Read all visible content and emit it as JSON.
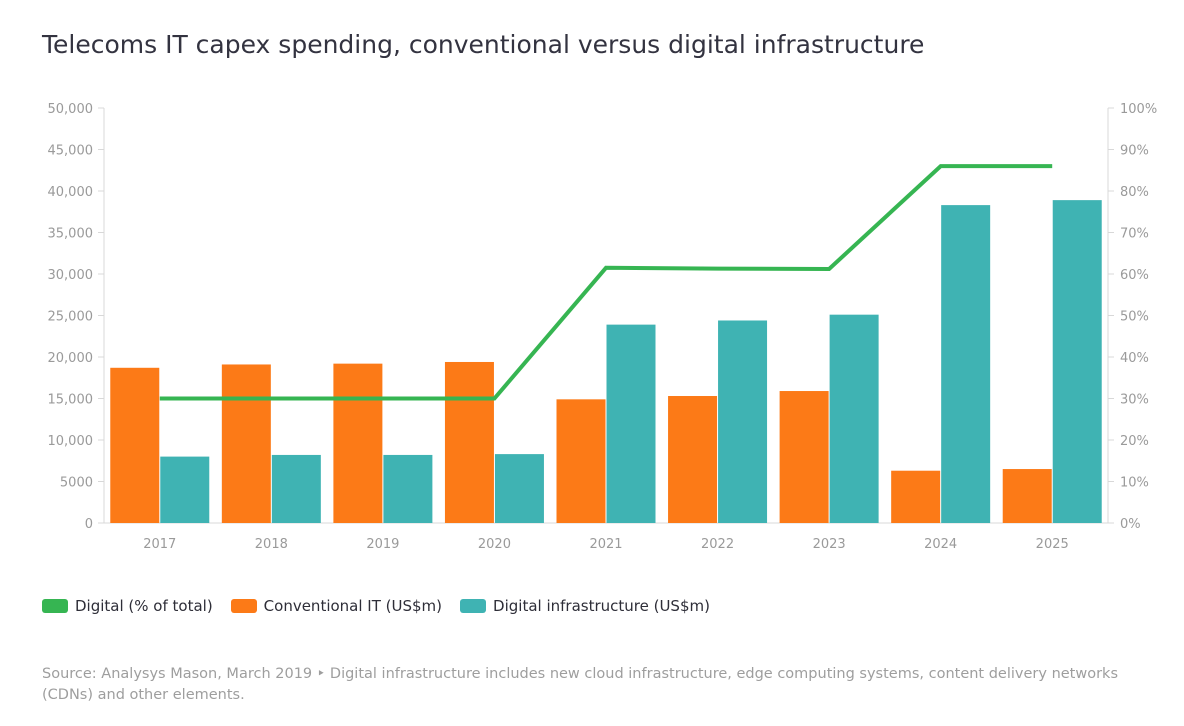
{
  "title": "Telecoms IT capex spending, conventional versus digital infrastructure",
  "colors": {
    "conventional": "#fc7a17",
    "digital_infra": "#3fb3b3",
    "digital_pct": "#36b552",
    "axis": "#d8d8d8",
    "tick_text": "#9a9a9a"
  },
  "legend": {
    "digital_pct": "Digital (% of total)",
    "conventional": "Conventional IT (US$m)",
    "digital_infra": "Digital infrastructure (US$m)"
  },
  "source": "Source: Analysys Mason, March 2019 ‣ Digital infrastructure includes new cloud infrastructure, edge computing systems, content delivery networks (CDNs) and other elements.",
  "chart_data": {
    "type": "bar",
    "categories": [
      "2017",
      "2018",
      "2019",
      "2020",
      "2021",
      "2022",
      "2023",
      "2024",
      "2025"
    ],
    "series": [
      {
        "name": "Conventional IT (US$m)",
        "type": "bar",
        "axis": "left",
        "values": [
          18700,
          19100,
          19200,
          19400,
          14900,
          15300,
          15900,
          6300,
          6500
        ]
      },
      {
        "name": "Digital infrastructure (US$m)",
        "type": "bar",
        "axis": "left",
        "values": [
          8000,
          8200,
          8200,
          8300,
          23900,
          24400,
          25100,
          38300,
          38900
        ]
      },
      {
        "name": "Digital (% of total)",
        "type": "line",
        "axis": "right",
        "values": [
          30,
          30,
          30,
          30,
          61.5,
          61.3,
          61.2,
          86,
          86
        ]
      }
    ],
    "y_left": {
      "min": 0,
      "max": 50000,
      "ticks": [
        "0",
        "5000",
        "10,000",
        "15,000",
        "20,000",
        "25,000",
        "30,000",
        "35,000",
        "40,000",
        "45,000",
        "50,000"
      ]
    },
    "y_right": {
      "min": 0,
      "max": 100,
      "ticks": [
        "0%",
        "10%",
        "20%",
        "30%",
        "40%",
        "50%",
        "60%",
        "70%",
        "80%",
        "90%",
        "100%"
      ]
    },
    "grid": false,
    "legend_position": "bottom-left"
  }
}
